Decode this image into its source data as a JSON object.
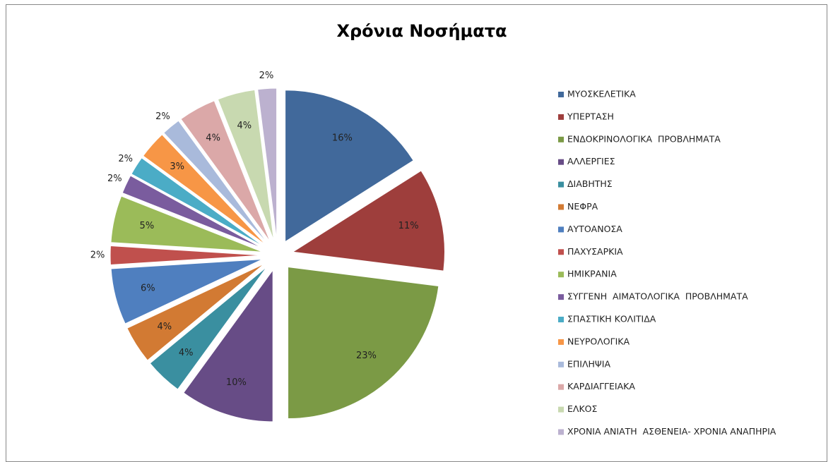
{
  "chart_data": {
    "type": "pie",
    "title": "Χρόνια Νοσήματα",
    "categories": [
      "ΜΥΟΣΚΕΛΕΤΙΚΑ",
      "ΥΠΕΡΤΑΣΗ",
      "ΕΝΔΟΚΡΙΝΟΛΟΓΙΚΑ  ΠΡΟΒΛΗΜΑΤΑ",
      "ΑΛΛΕΡΓΙΕΣ",
      "ΔΙΑΒΗΤΗΣ",
      "ΝΕΦΡΑ",
      "ΑΥΤΟΑΝΟΣΑ",
      "ΠΑΧΥΣΑΡΚΙΑ",
      "ΗΜΙΚΡΑΝΙΑ",
      "ΣΥΓΓΕΝΗ  ΑΙΜΑΤΟΛΟΓΙΚΑ  ΠΡΟΒΛΗΜΑΤΑ",
      "ΣΠΑΣΤΙΚΗ ΚΟΛΙΤΙΔΑ",
      "ΝΕΥΡΟΛΟΓΙΚΑ",
      "ΕΠΙΛΗΨΙΑ",
      "ΚΑΡΔΙΑΓΓΕΙΑΚΑ",
      "ΕΛΚΟΣ",
      "ΧΡΟΝΙΑ ΑΝΙΑΤΗ  ΑΣΘΕΝΕΙΑ- ΧΡΟΝΙΑ ΑΝΑΠΗΡΙΑ"
    ],
    "values": [
      16,
      11,
      23,
      10,
      4,
      4,
      6,
      2,
      5,
      2,
      2,
      3,
      2,
      4,
      4,
      2
    ],
    "value_labels": [
      "16%",
      "11%",
      "23%",
      "10%",
      "4%",
      "4%",
      "6%",
      "2%",
      "5%",
      "2%",
      "2%",
      "3%",
      "2%",
      "4%",
      "4%",
      "2%"
    ],
    "colors": [
      "#41699b",
      "#9e3e3c",
      "#7b9a45",
      "#674c86",
      "#3a8fa0",
      "#d27a33",
      "#4f7fbf",
      "#c0504d",
      "#9bbb59",
      "#7a5c9e",
      "#4bacc6",
      "#f79646",
      "#a9badb",
      "#dba8a8",
      "#c8d9b0",
      "#bcb1cf"
    ],
    "legend": "right"
  }
}
